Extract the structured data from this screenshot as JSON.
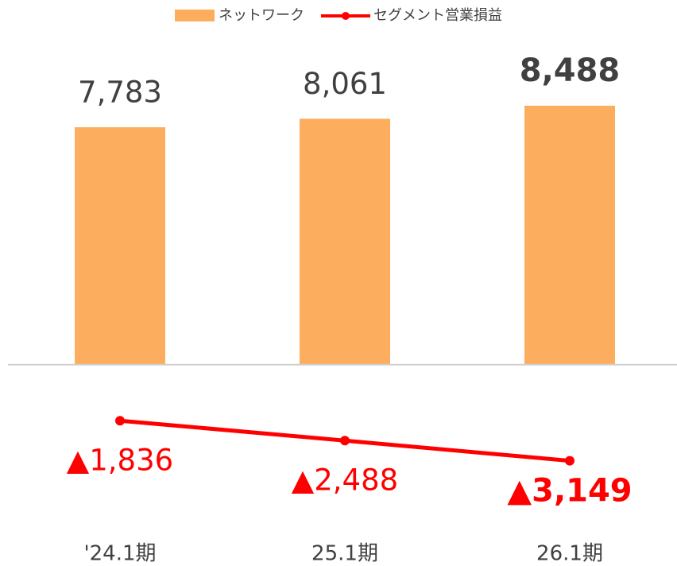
{
  "chart_data": {
    "type": "combo",
    "categories": [
      "'24.1期",
      "25.1期",
      "26.1期"
    ],
    "series": [
      {
        "name": "ネットワーク",
        "type": "bar",
        "color": "#fcad5d",
        "values": [
          7783,
          8061,
          8488
        ],
        "value_labels": [
          "7,783",
          "8,061",
          "8,488"
        ]
      },
      {
        "name": "セグメント営業損益",
        "type": "line",
        "color": "#ff0000",
        "values": [
          -1836,
          -2488,
          -3149
        ],
        "value_labels": [
          "▲1,836",
          "▲2,488",
          "▲3,149"
        ]
      }
    ],
    "ylim": [
      -6000,
      10000
    ]
  }
}
